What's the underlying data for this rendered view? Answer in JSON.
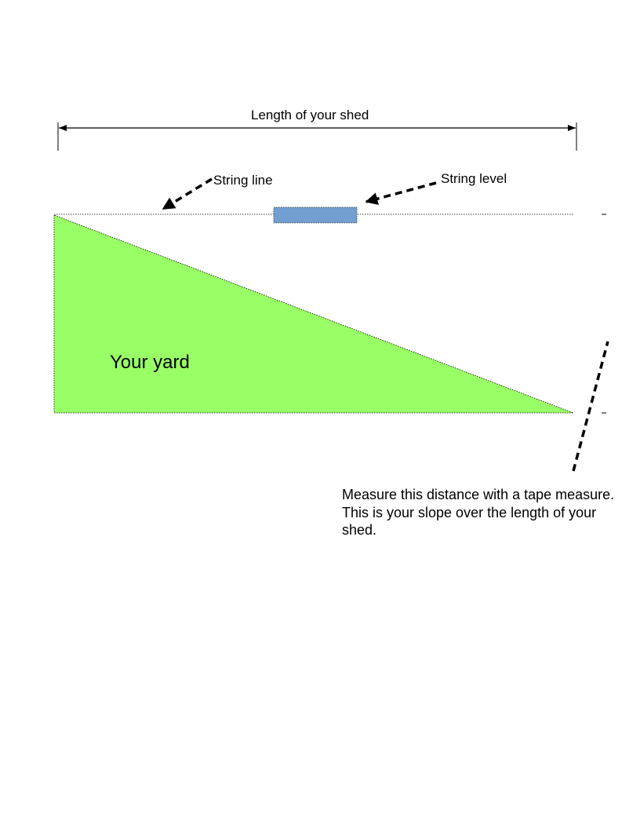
{
  "diagram": {
    "shed_length_label": "Length of your shed",
    "string_line_label": "String line",
    "string_level_label": "String level",
    "yard_label": "Your yard",
    "measure_note": "Measure this distance with a tape measure. This is your slope over the length of your shed."
  },
  "colors": {
    "yard_fill": "#99ff66",
    "level_fill": "#729fcf",
    "line": "#000000"
  }
}
